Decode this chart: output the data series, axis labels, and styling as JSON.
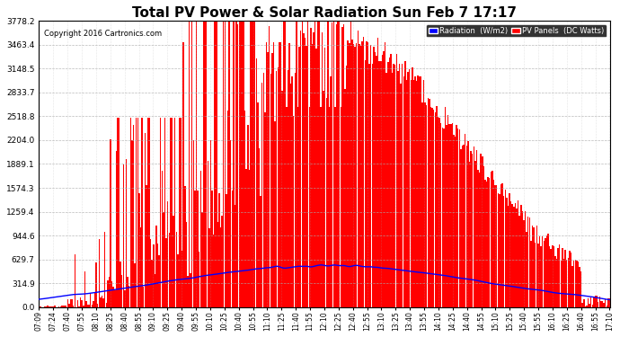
{
  "title": "Total PV Power & Solar Radiation Sun Feb 7 17:17",
  "copyright": "Copyright 2016 Cartronics.com",
  "legend_radiation": "Radiation  (W/m2)",
  "legend_pv": "PV Panels  (DC Watts)",
  "yticks": [
    0.0,
    314.9,
    629.7,
    944.6,
    1259.4,
    1574.3,
    1889.1,
    2204.0,
    2518.8,
    2833.7,
    3148.5,
    3463.4,
    3778.2
  ],
  "ymax": 3778.2,
  "background_color": "#ffffff",
  "plot_bg_color": "#ffffff",
  "grid_color": "#aaaaaa",
  "red_fill_color": "#ff0000",
  "blue_line_color": "#0000ff",
  "title_fontsize": 11,
  "xtick_labels": [
    "07:09",
    "07:24",
    "07:40",
    "07:55",
    "08:10",
    "08:25",
    "08:40",
    "08:55",
    "09:10",
    "09:25",
    "09:40",
    "09:55",
    "10:10",
    "10:25",
    "10:40",
    "10:55",
    "11:10",
    "11:25",
    "11:40",
    "11:55",
    "12:10",
    "12:25",
    "12:40",
    "12:55",
    "13:10",
    "13:25",
    "13:40",
    "13:55",
    "14:10",
    "14:25",
    "14:40",
    "14:55",
    "15:10",
    "15:25",
    "15:40",
    "15:55",
    "16:10",
    "16:25",
    "16:40",
    "16:55",
    "17:10"
  ]
}
